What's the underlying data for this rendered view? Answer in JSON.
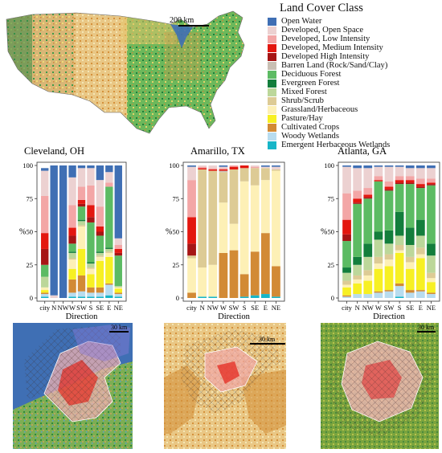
{
  "legend": {
    "title": "Land Cover Class",
    "items": [
      {
        "label": "Open Water",
        "color": "#3f6fb4"
      },
      {
        "label": "Developed, Open Space",
        "color": "#ecd1d1"
      },
      {
        "label": "Developed, Low Intensity",
        "color": "#f3a6a6"
      },
      {
        "label": "Developed, Medium Intensity",
        "color": "#e3170f"
      },
      {
        "label": "Developed High Intensity",
        "color": "#a61515"
      },
      {
        "label": "Barren Land (Rock/Sand/Clay)",
        "color": "#c8bfb3"
      },
      {
        "label": "Deciduous Forest",
        "color": "#5cbb63"
      },
      {
        "label": "Evergreen Forest",
        "color": "#137e3c"
      },
      {
        "label": "Mixed Forest",
        "color": "#bcd79a"
      },
      {
        "label": "Shrub/Scrub",
        "color": "#ddcb95"
      },
      {
        "label": "Grassland/Herbaceous",
        "color": "#fdf0b6"
      },
      {
        "label": "Pasture/Hay",
        "color": "#f7f023"
      },
      {
        "label": "Cultivated Crops",
        "color": "#d28a35"
      },
      {
        "label": "Woody Wetlands",
        "color": "#b8dcef"
      },
      {
        "label": "Emergent Herbaceous Wetlands",
        "color": "#17b5c8"
      }
    ]
  },
  "us_map": {
    "scale_label": "200 km"
  },
  "chart_data": [
    {
      "type": "bar",
      "stacked": true,
      "title": "Cleveland, OH",
      "xlabel": "Direction",
      "ylabel": "%",
      "ylim": [
        0,
        100
      ],
      "yticks": [
        0,
        25,
        50,
        75,
        100
      ],
      "categories": [
        "city",
        "N",
        "NW",
        "W",
        "SW",
        "S",
        "SE",
        "E",
        "NE"
      ],
      "series": [
        {
          "name": "Emergent Herbaceous Wetlands",
          "values": [
            1,
            0,
            0,
            1,
            1,
            1,
            1,
            2,
            1
          ]
        },
        {
          "name": "Woody Wetlands",
          "values": [
            2,
            0,
            0,
            3,
            4,
            3,
            3,
            8,
            2
          ]
        },
        {
          "name": "Cultivated Crops",
          "values": [
            1,
            0,
            0,
            10,
            12,
            4,
            4,
            1,
            1
          ]
        },
        {
          "name": "Pasture/Hay",
          "values": [
            2,
            0,
            0,
            8,
            20,
            10,
            20,
            20,
            3
          ]
        },
        {
          "name": "Grassland/Herbaceous",
          "values": [
            2,
            0,
            0,
            7,
            17,
            4,
            3,
            3,
            1
          ]
        },
        {
          "name": "Shrub/Scrub",
          "values": [
            0,
            0,
            0,
            1,
            1,
            1,
            1,
            1,
            0
          ]
        },
        {
          "name": "Mixed Forest",
          "values": [
            8,
            0,
            0,
            4,
            3,
            3,
            2,
            2,
            1
          ]
        },
        {
          "name": "Evergreen Forest",
          "values": [
            0,
            0,
            0,
            1,
            1,
            1,
            1,
            1,
            0
          ]
        },
        {
          "name": "Deciduous Forest",
          "values": [
            9,
            0,
            0,
            6,
            10,
            30,
            12,
            46,
            23
          ]
        },
        {
          "name": "Barren Land (Rock/Sand/Clay)",
          "values": [
            0,
            0,
            0,
            0,
            0,
            0,
            0,
            0,
            0
          ]
        },
        {
          "name": "Developed High Intensity",
          "values": [
            12,
            0,
            0,
            6,
            2,
            4,
            3,
            0,
            2
          ]
        },
        {
          "name": "Developed, Medium Intensity",
          "values": [
            12,
            0,
            0,
            6,
            3,
            9,
            4,
            0,
            3
          ]
        },
        {
          "name": "Developed, Low Intensity",
          "values": [
            28,
            0,
            0,
            17,
            10,
            15,
            15,
            3,
            3
          ]
        },
        {
          "name": "Developed, Open Space",
          "values": [
            19,
            2,
            0,
            21,
            14,
            13,
            20,
            8,
            5
          ]
        },
        {
          "name": "Open Water",
          "values": [
            2,
            98,
            100,
            9,
            2,
            2,
            11,
            5,
            55
          ]
        }
      ]
    },
    {
      "type": "bar",
      "stacked": true,
      "title": "Amarillo, TX",
      "xlabel": "Direction",
      "ylabel": "%",
      "ylim": [
        0,
        100
      ],
      "yticks": [
        0,
        25,
        50,
        75,
        100
      ],
      "categories": [
        "city",
        "N",
        "NW",
        "W",
        "SW",
        "S",
        "SE",
        "E",
        "NE"
      ],
      "series": [
        {
          "name": "Emergent Herbaceous Wetlands",
          "values": [
            0,
            1,
            1,
            0,
            0,
            1,
            2,
            3,
            1
          ]
        },
        {
          "name": "Woody Wetlands",
          "values": [
            0,
            0,
            0,
            0,
            0,
            0,
            0,
            0,
            0
          ]
        },
        {
          "name": "Cultivated Crops",
          "values": [
            4,
            0,
            0,
            34,
            36,
            17,
            33,
            46,
            23
          ]
        },
        {
          "name": "Pasture/Hay",
          "values": [
            0,
            0,
            0,
            0,
            0,
            0,
            0,
            0,
            0
          ]
        },
        {
          "name": "Grassland/Herbaceous",
          "values": [
            26,
            22,
            24,
            38,
            20,
            70,
            50,
            40,
            72
          ]
        },
        {
          "name": "Shrub/Scrub",
          "values": [
            2,
            74,
            71,
            23,
            41,
            10,
            13,
            9,
            1
          ]
        },
        {
          "name": "Mixed Forest",
          "values": [
            0,
            0,
            0,
            0,
            0,
            0,
            0,
            0,
            0
          ]
        },
        {
          "name": "Evergreen Forest",
          "values": [
            0,
            0,
            0,
            0,
            0,
            0,
            0,
            0,
            0
          ]
        },
        {
          "name": "Deciduous Forest",
          "values": [
            0,
            0,
            0,
            0,
            0,
            0,
            0,
            0,
            0
          ]
        },
        {
          "name": "Barren Land (Rock/Sand/Clay)",
          "values": [
            0,
            0,
            0,
            1,
            0,
            0,
            0,
            0,
            0
          ]
        },
        {
          "name": "Developed High Intensity",
          "values": [
            9,
            0,
            0,
            0,
            0,
            0,
            0,
            0,
            0
          ]
        },
        {
          "name": "Developed, Medium Intensity",
          "values": [
            20,
            1,
            1,
            1,
            2,
            2,
            0,
            0,
            0
          ]
        },
        {
          "name": "Developed, Low Intensity",
          "values": [
            28,
            1,
            1,
            1,
            1,
            0,
            1,
            0,
            0
          ]
        },
        {
          "name": "Developed, Open Space",
          "values": [
            10,
            1,
            2,
            1,
            0,
            0,
            1,
            1,
            2
          ]
        },
        {
          "name": "Open Water",
          "values": [
            1,
            0,
            0,
            1,
            0,
            0,
            0,
            1,
            1
          ]
        }
      ]
    },
    {
      "type": "bar",
      "stacked": true,
      "title": "Atlanta, GA",
      "xlabel": "Direction",
      "ylabel": "%",
      "ylim": [
        0,
        100
      ],
      "yticks": [
        0,
        25,
        50,
        75,
        100
      ],
      "categories": [
        "city",
        "N",
        "NW",
        "W",
        "SW",
        "S",
        "SE",
        "E",
        "NE"
      ],
      "series": [
        {
          "name": "Emergent Herbaceous Wetlands",
          "values": [
            0,
            0,
            0,
            0,
            0,
            1,
            0,
            0,
            0
          ]
        },
        {
          "name": "Woody Wetlands",
          "values": [
            1,
            3,
            3,
            4,
            5,
            8,
            4,
            5,
            3
          ]
        },
        {
          "name": "Cultivated Crops",
          "values": [
            1,
            0,
            0,
            1,
            1,
            2,
            2,
            1,
            1
          ]
        },
        {
          "name": "Pasture/Hay",
          "values": [
            6,
            8,
            10,
            17,
            18,
            23,
            16,
            24,
            8
          ]
        },
        {
          "name": "Grassland/Herbaceous",
          "values": [
            2,
            3,
            4,
            4,
            5,
            2,
            5,
            3,
            3
          ]
        },
        {
          "name": "Shrub/Scrub",
          "values": [
            3,
            3,
            4,
            5,
            4,
            4,
            4,
            5,
            4
          ]
        },
        {
          "name": "Mixed Forest",
          "values": [
            6,
            8,
            10,
            13,
            8,
            7,
            9,
            9,
            13
          ]
        },
        {
          "name": "Evergreen Forest",
          "values": [
            4,
            6,
            10,
            6,
            10,
            18,
            13,
            12,
            9
          ]
        },
        {
          "name": "Deciduous Forest",
          "values": [
            20,
            40,
            34,
            38,
            30,
            21,
            33,
            24,
            44
          ]
        },
        {
          "name": "Barren Land (Rock/Sand/Clay)",
          "values": [
            0,
            0,
            0,
            0,
            0,
            0,
            0,
            0,
            0
          ]
        },
        {
          "name": "Developed High Intensity",
          "values": [
            5,
            1,
            1,
            0,
            1,
            1,
            1,
            1,
            1
          ]
        },
        {
          "name": "Developed, Medium Intensity",
          "values": [
            11,
            3,
            2,
            1,
            2,
            2,
            2,
            2,
            1
          ]
        },
        {
          "name": "Developed, Low Intensity",
          "values": [
            20,
            6,
            5,
            3,
            4,
            3,
            3,
            4,
            3
          ]
        },
        {
          "name": "Developed, Open Space",
          "values": [
            20,
            17,
            15,
            7,
            11,
            7,
            6,
            8,
            8
          ]
        },
        {
          "name": "Open Water",
          "values": [
            1,
            2,
            2,
            1,
            1,
            1,
            2,
            2,
            2
          ]
        }
      ]
    }
  ],
  "maps": [
    {
      "city": "Cleveland, OH",
      "scale_label": "30 km"
    },
    {
      "city": "Amarillo, TX",
      "scale_label": "30 km"
    },
    {
      "city": "Atlanta, GA",
      "scale_label": "30 km"
    }
  ]
}
